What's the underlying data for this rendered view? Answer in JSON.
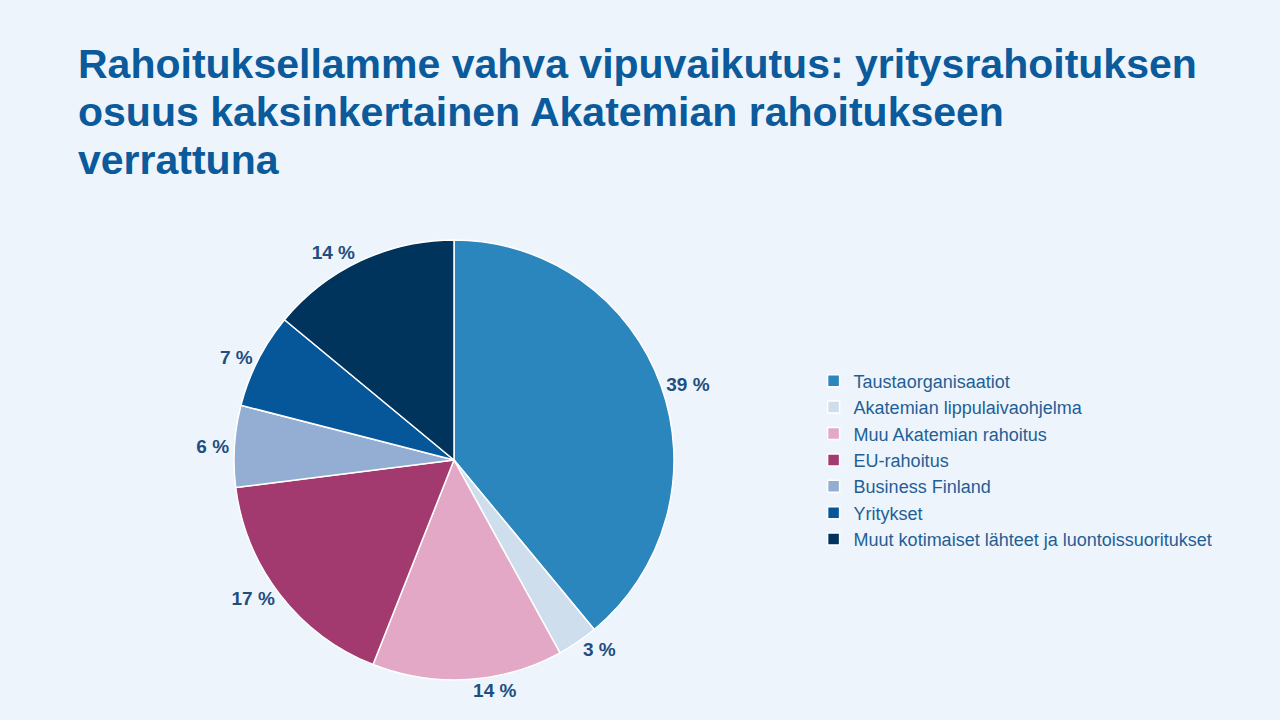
{
  "chart_data": {
    "type": "pie",
    "title": "Rahoituksellamme vahva vipuvaikutus: yritysrahoituksen osuus kaksinkertainen Akatemian rahoitukseen verrattuna",
    "categories": [
      "Taustaorganisaatiot",
      "Akatemian lippulaivaohjelma",
      "Muu Akatemian rahoitus",
      "EU-rahoitus",
      "Business Finland",
      "Yritykset",
      "Muut kotimaiset lähteet ja luontoissuoritukset"
    ],
    "values": [
      39,
      3,
      14,
      17,
      6,
      7,
      14
    ],
    "value_labels": [
      "39 %",
      "3 %",
      "14 %",
      "17 %",
      "6 %",
      "7 %",
      "14 %"
    ],
    "colors": [
      "#2a86bd",
      "#cfdeed",
      "#e3a8c6",
      "#a33a6f",
      "#93aed2",
      "#06579a",
      "#00345c"
    ],
    "data_labels": true,
    "legend": "right"
  }
}
